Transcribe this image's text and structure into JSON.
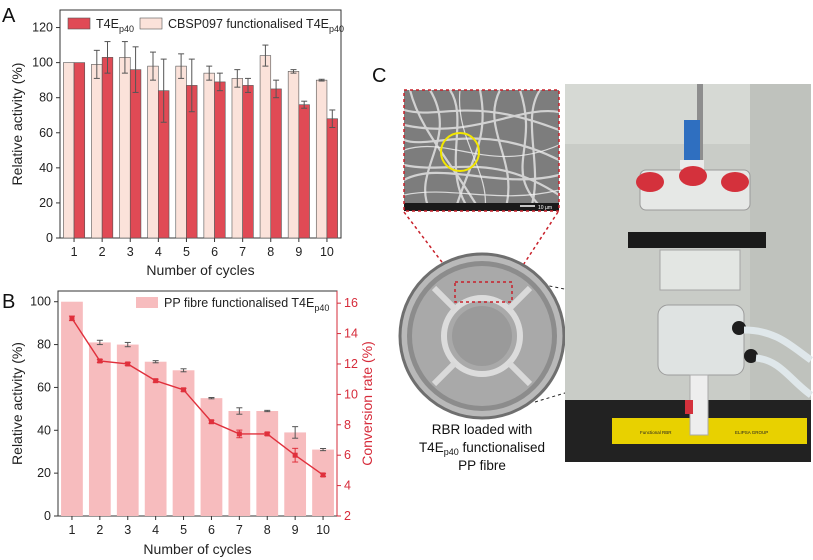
{
  "panels": {
    "a": "A",
    "b": "B",
    "c": "C"
  },
  "chart_data": [
    {
      "type": "bar",
      "panel": "A",
      "categories": [
        "1",
        "2",
        "3",
        "4",
        "5",
        "6",
        "7",
        "8",
        "9",
        "10"
      ],
      "xlabel": "Number of cycles",
      "ylabel": "Relative activity (%)",
      "ylim": [
        0,
        130
      ],
      "yticks": [
        "0",
        "20",
        "40",
        "60",
        "80",
        "100",
        "120"
      ],
      "legend_placement": "top-left",
      "series": [
        {
          "name": "CBSP097 functionalised T4E",
          "name_sub": "p40",
          "color": "#fbe2da",
          "values": [
            100,
            99,
            103,
            98,
            98,
            94,
            91,
            104,
            95,
            90
          ],
          "errors": [
            0,
            8,
            9,
            8,
            7,
            4,
            5,
            6,
            1,
            0.5
          ]
        },
        {
          "name": "T4E",
          "name_sub": "p40",
          "color": "#e04a55",
          "values": [
            100,
            103,
            96,
            84,
            87,
            89,
            87,
            85,
            76,
            68
          ],
          "errors": [
            0,
            9,
            13,
            18,
            15,
            5,
            4,
            5,
            2,
            5
          ]
        }
      ]
    },
    {
      "type": "bar+line",
      "panel": "B",
      "categories": [
        "1",
        "2",
        "3",
        "4",
        "5",
        "6",
        "7",
        "8",
        "9",
        "10"
      ],
      "xlabel": "Number of cycles",
      "ylabel": "Relative activity (%)",
      "y2label": "Conversion rate (%)",
      "ylim": [
        0,
        105
      ],
      "y2lim": [
        2,
        16.8
      ],
      "yticks": [
        "0",
        "20",
        "40",
        "60",
        "80",
        "100"
      ],
      "y2ticks": [
        "2",
        "4",
        "6",
        "8",
        "10",
        "12",
        "14",
        "16"
      ],
      "legend_placement": "top-right",
      "bars": {
        "name": "PP fibre functionalised T4E",
        "name_sub": "p40",
        "color": "#f7bcbe",
        "values": [
          100,
          81,
          80,
          72,
          68,
          55,
          49,
          49,
          39,
          31
        ],
        "errors": [
          0,
          1,
          1,
          0.5,
          0.7,
          0.3,
          1.5,
          0.3,
          2.7,
          0.5
        ]
      },
      "line": {
        "color": "#e0303c",
        "values": [
          15.0,
          12.2,
          12.0,
          10.9,
          10.3,
          8.2,
          7.4,
          7.4,
          6.0,
          4.7
        ],
        "errors": [
          0.15,
          0.1,
          0.1,
          0.1,
          0.1,
          0.1,
          0.25,
          0.1,
          0.45,
          0.1
        ]
      }
    }
  ],
  "photo": {
    "caption_line1": "RBR loaded with",
    "caption_line2_main": "T4E",
    "caption_line2_sub": "p40",
    "caption_line2_tail": " functionalised",
    "caption_line3": "PP fibre",
    "sem_scale_text": "10 µm",
    "base_label_left": "Functional RBR",
    "base_label_right": "ELIPSA GROUP"
  }
}
